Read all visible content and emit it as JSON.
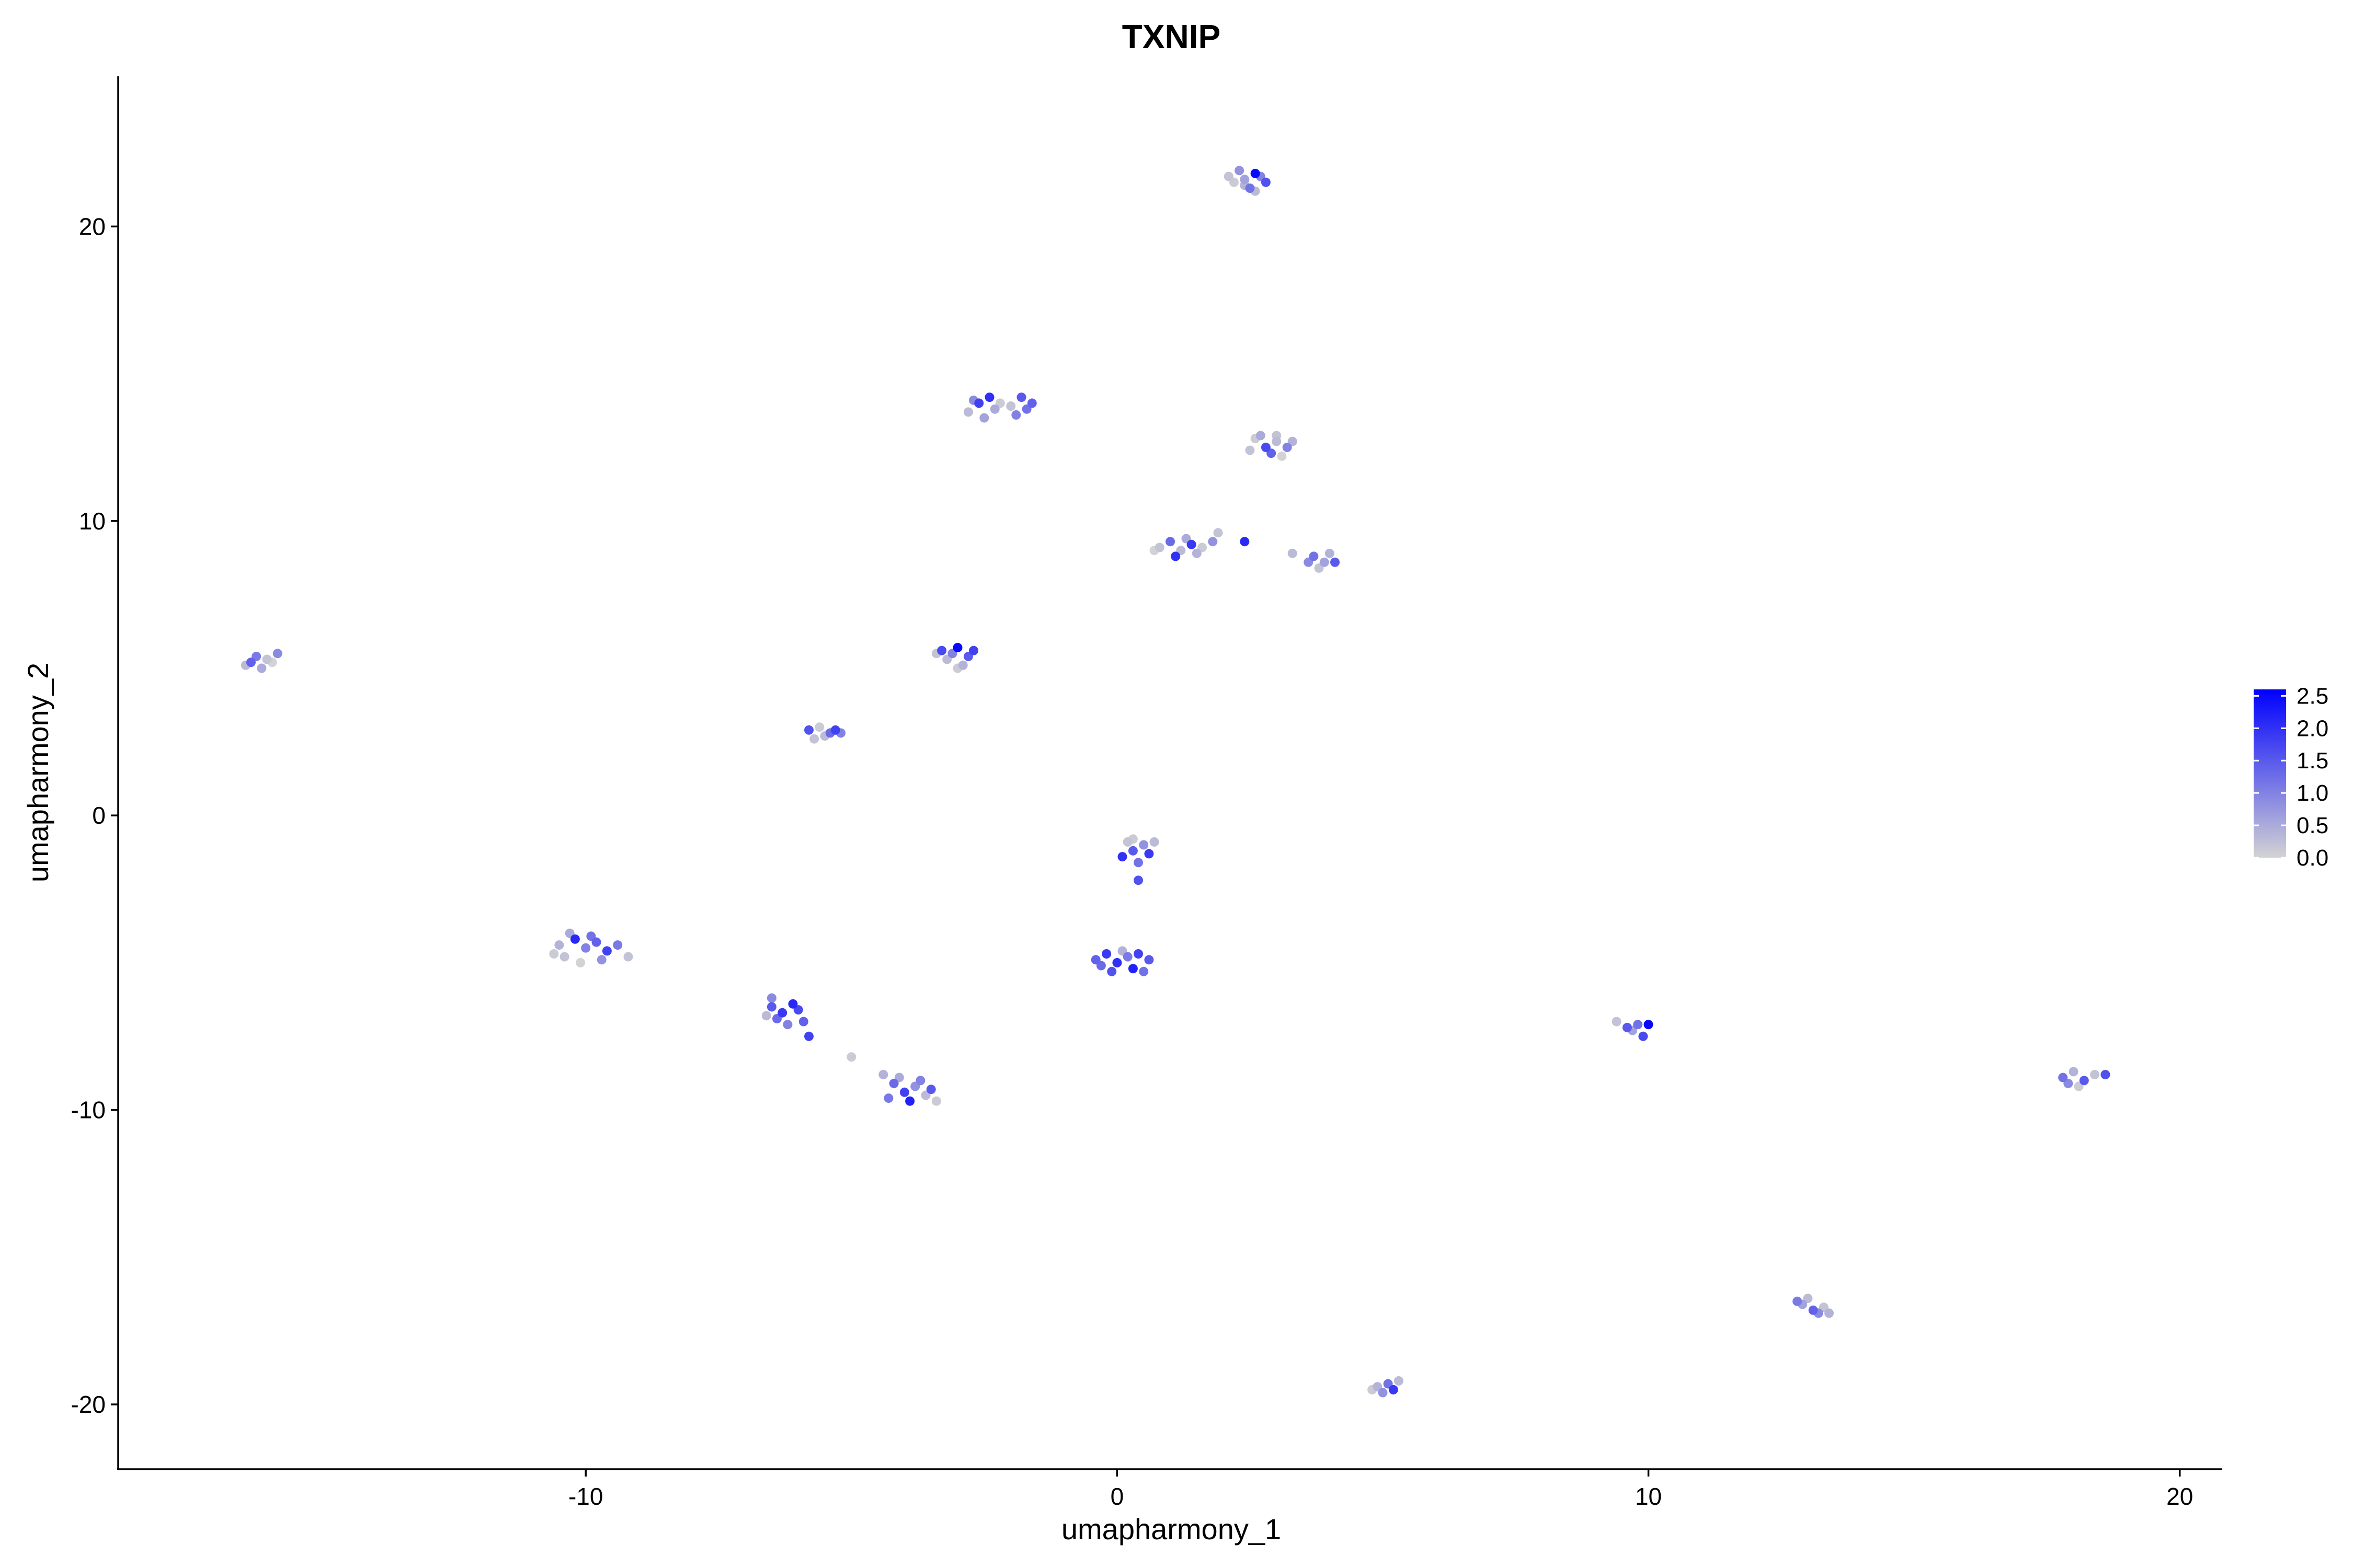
{
  "chart_data": {
    "type": "scatter",
    "title": "TXNIP",
    "xlabel": "umapharmony_1",
    "ylabel": "umapharmony_2",
    "xlim": [
      -18.8,
      20.8
    ],
    "ylim": [
      -22.2,
      25.1
    ],
    "x_ticks": [
      -10,
      0,
      10,
      20
    ],
    "y_ticks": [
      -20,
      -10,
      0,
      10,
      20
    ],
    "x_tick_labels": [
      "-10",
      "0",
      "10",
      "20"
    ],
    "y_tick_labels": [
      "-20",
      "-10",
      "0",
      "10",
      "20"
    ],
    "grid": false,
    "legend": {
      "position": "right",
      "type": "colorbar",
      "labels": [
        "2.5",
        "2.0",
        "1.5",
        "1.0",
        "0.5",
        "0.0"
      ],
      "values": [
        2.5,
        2.0,
        1.5,
        1.0,
        0.5,
        0.0
      ],
      "range": [
        0,
        2.6
      ]
    },
    "color_low": "#d3d3d3",
    "color_high": "#0000ff",
    "points": [
      {
        "x": 2.4,
        "y": 21.6,
        "v": 0.6
      },
      {
        "x": 2.6,
        "y": 21.8,
        "v": 2.5
      },
      {
        "x": 2.2,
        "y": 21.5,
        "v": 0.1
      },
      {
        "x": 2.5,
        "y": 21.3,
        "v": 1.2
      },
      {
        "x": 2.8,
        "y": 21.5,
        "v": 1.6
      },
      {
        "x": 2.3,
        "y": 21.9,
        "v": 0.8
      },
      {
        "x": 2.6,
        "y": 21.2,
        "v": 0.3
      },
      {
        "x": 2.1,
        "y": 21.7,
        "v": 0.2
      },
      {
        "x": 2.7,
        "y": 21.7,
        "v": 1.0
      },
      {
        "x": 2.4,
        "y": 21.4,
        "v": 0.4
      },
      {
        "x": -2.6,
        "y": 14.0,
        "v": 1.8
      },
      {
        "x": -2.3,
        "y": 13.8,
        "v": 0.5
      },
      {
        "x": -2.0,
        "y": 13.9,
        "v": 0.2
      },
      {
        "x": -1.8,
        "y": 14.2,
        "v": 1.5
      },
      {
        "x": -1.7,
        "y": 13.8,
        "v": 1.2
      },
      {
        "x": -2.4,
        "y": 14.2,
        "v": 2.0
      },
      {
        "x": -2.8,
        "y": 13.7,
        "v": 0.3
      },
      {
        "x": -1.9,
        "y": 13.6,
        "v": 1.0
      },
      {
        "x": -2.5,
        "y": 13.5,
        "v": 0.6
      },
      {
        "x": -2.2,
        "y": 14.0,
        "v": 0.1
      },
      {
        "x": -1.6,
        "y": 14.0,
        "v": 1.4
      },
      {
        "x": -2.7,
        "y": 14.1,
        "v": 0.9
      },
      {
        "x": 2.6,
        "y": 12.8,
        "v": 0.1
      },
      {
        "x": 2.8,
        "y": 12.5,
        "v": 1.7
      },
      {
        "x": 3.0,
        "y": 12.7,
        "v": 0.3
      },
      {
        "x": 3.2,
        "y": 12.5,
        "v": 1.0
      },
      {
        "x": 2.5,
        "y": 12.4,
        "v": 0.2
      },
      {
        "x": 3.3,
        "y": 12.7,
        "v": 0.4
      },
      {
        "x": 2.9,
        "y": 12.3,
        "v": 1.4
      },
      {
        "x": 3.1,
        "y": 12.2,
        "v": 0.0
      },
      {
        "x": 2.7,
        "y": 12.9,
        "v": 0.5
      },
      {
        "x": 3.0,
        "y": 12.9,
        "v": 0.2
      },
      {
        "x": 0.8,
        "y": 9.1,
        "v": 0.2
      },
      {
        "x": 1.0,
        "y": 9.3,
        "v": 1.3
      },
      {
        "x": 1.2,
        "y": 9.0,
        "v": 0.3
      },
      {
        "x": 1.4,
        "y": 9.2,
        "v": 1.9
      },
      {
        "x": 1.6,
        "y": 9.1,
        "v": 0.1
      },
      {
        "x": 1.8,
        "y": 9.3,
        "v": 0.8
      },
      {
        "x": 1.1,
        "y": 8.8,
        "v": 2.0
      },
      {
        "x": 0.7,
        "y": 9.0,
        "v": 0.0
      },
      {
        "x": 1.9,
        "y": 9.6,
        "v": 0.2
      },
      {
        "x": 1.3,
        "y": 9.4,
        "v": 0.5
      },
      {
        "x": 1.5,
        "y": 8.9,
        "v": 0.4
      },
      {
        "x": 2.4,
        "y": 9.3,
        "v": 2.1
      },
      {
        "x": 3.3,
        "y": 8.9,
        "v": 0.3
      },
      {
        "x": 3.7,
        "y": 8.8,
        "v": 1.2
      },
      {
        "x": 3.9,
        "y": 8.6,
        "v": 0.6
      },
      {
        "x": 4.1,
        "y": 8.6,
        "v": 1.5
      },
      {
        "x": 3.8,
        "y": 8.4,
        "v": 0.2
      },
      {
        "x": 3.6,
        "y": 8.6,
        "v": 0.9
      },
      {
        "x": 4.0,
        "y": 8.9,
        "v": 0.4
      },
      {
        "x": -16.3,
        "y": 5.2,
        "v": 1.4
      },
      {
        "x": -16.0,
        "y": 5.3,
        "v": 0.2
      },
      {
        "x": -16.1,
        "y": 5.0,
        "v": 0.5
      },
      {
        "x": -15.8,
        "y": 5.5,
        "v": 0.9
      },
      {
        "x": -16.4,
        "y": 5.1,
        "v": 0.3
      },
      {
        "x": -15.9,
        "y": 5.2,
        "v": 0.0
      },
      {
        "x": -16.2,
        "y": 5.4,
        "v": 1.1
      },
      {
        "x": -3.3,
        "y": 5.6,
        "v": 1.7
      },
      {
        "x": -3.0,
        "y": 5.7,
        "v": 2.5
      },
      {
        "x": -2.8,
        "y": 5.4,
        "v": 1.5
      },
      {
        "x": -3.2,
        "y": 5.3,
        "v": 0.3
      },
      {
        "x": -2.9,
        "y": 5.1,
        "v": 0.4
      },
      {
        "x": -3.1,
        "y": 5.5,
        "v": 1.0
      },
      {
        "x": -2.7,
        "y": 5.6,
        "v": 1.8
      },
      {
        "x": -3.4,
        "y": 5.5,
        "v": 0.2
      },
      {
        "x": -3.0,
        "y": 5.0,
        "v": 0.1
      },
      {
        "x": -5.8,
        "y": 2.9,
        "v": 1.6
      },
      {
        "x": -5.5,
        "y": 2.7,
        "v": 0.3
      },
      {
        "x": -5.3,
        "y": 2.9,
        "v": 1.8
      },
      {
        "x": -5.6,
        "y": 3.0,
        "v": 0.1
      },
      {
        "x": -5.4,
        "y": 2.8,
        "v": 1.3
      },
      {
        "x": -5.7,
        "y": 2.6,
        "v": 0.2
      },
      {
        "x": -5.2,
        "y": 2.8,
        "v": 1.0
      },
      {
        "x": 0.3,
        "y": -1.2,
        "v": 1.5
      },
      {
        "x": 0.5,
        "y": -1.0,
        "v": 0.8
      },
      {
        "x": 0.2,
        "y": -0.9,
        "v": 0.2
      },
      {
        "x": 0.6,
        "y": -1.3,
        "v": 1.9
      },
      {
        "x": 0.1,
        "y": -1.4,
        "v": 2.0
      },
      {
        "x": 0.4,
        "y": -1.6,
        "v": 1.2
      },
      {
        "x": 0.7,
        "y": -0.9,
        "v": 0.3
      },
      {
        "x": 0.3,
        "y": -0.8,
        "v": 0.1
      },
      {
        "x": 0.4,
        "y": -2.2,
        "v": 1.6
      },
      {
        "x": -0.4,
        "y": -4.9,
        "v": 1.4
      },
      {
        "x": -0.2,
        "y": -4.7,
        "v": 1.9
      },
      {
        "x": 0.0,
        "y": -5.0,
        "v": 2.0
      },
      {
        "x": 0.2,
        "y": -4.8,
        "v": 1.1
      },
      {
        "x": 0.4,
        "y": -4.7,
        "v": 1.8
      },
      {
        "x": -0.1,
        "y": -5.3,
        "v": 1.6
      },
      {
        "x": 0.3,
        "y": -5.2,
        "v": 2.2
      },
      {
        "x": 0.6,
        "y": -4.9,
        "v": 1.5
      },
      {
        "x": -0.3,
        "y": -5.1,
        "v": 1.3
      },
      {
        "x": 0.1,
        "y": -4.6,
        "v": 0.4
      },
      {
        "x": 0.5,
        "y": -5.3,
        "v": 1.2
      },
      {
        "x": -10.5,
        "y": -4.4,
        "v": 0.4
      },
      {
        "x": -10.2,
        "y": -4.2,
        "v": 2.1
      },
      {
        "x": -10.0,
        "y": -4.5,
        "v": 1.0
      },
      {
        "x": -9.8,
        "y": -4.3,
        "v": 1.4
      },
      {
        "x": -9.6,
        "y": -4.6,
        "v": 1.8
      },
      {
        "x": -10.4,
        "y": -4.8,
        "v": 0.2
      },
      {
        "x": -10.1,
        "y": -5.0,
        "v": 0.0
      },
      {
        "x": -9.9,
        "y": -4.1,
        "v": 1.2
      },
      {
        "x": -9.4,
        "y": -4.4,
        "v": 1.1
      },
      {
        "x": -9.2,
        "y": -4.8,
        "v": 0.2
      },
      {
        "x": -10.3,
        "y": -4.0,
        "v": 0.5
      },
      {
        "x": -9.7,
        "y": -4.9,
        "v": 0.8
      },
      {
        "x": -10.6,
        "y": -4.7,
        "v": 0.1
      },
      {
        "x": -6.5,
        "y": -6.5,
        "v": 1.5
      },
      {
        "x": -6.3,
        "y": -6.7,
        "v": 1.9
      },
      {
        "x": -6.1,
        "y": -6.4,
        "v": 2.1
      },
      {
        "x": -6.4,
        "y": -6.9,
        "v": 1.3
      },
      {
        "x": -6.0,
        "y": -6.6,
        "v": 1.7
      },
      {
        "x": -6.6,
        "y": -6.8,
        "v": 0.3
      },
      {
        "x": -6.2,
        "y": -7.1,
        "v": 1.0
      },
      {
        "x": -6.5,
        "y": -6.2,
        "v": 0.9
      },
      {
        "x": -5.9,
        "y": -7.0,
        "v": 1.4
      },
      {
        "x": -5.8,
        "y": -7.5,
        "v": 1.8
      },
      {
        "x": -5.0,
        "y": -8.2,
        "v": 0.1
      },
      {
        "x": -4.2,
        "y": -9.1,
        "v": 1.3
      },
      {
        "x": -4.0,
        "y": -9.4,
        "v": 1.8
      },
      {
        "x": -3.8,
        "y": -9.2,
        "v": 0.8
      },
      {
        "x": -3.6,
        "y": -9.5,
        "v": 0.3
      },
      {
        "x": -3.9,
        "y": -9.7,
        "v": 2.2
      },
      {
        "x": -4.3,
        "y": -9.6,
        "v": 1.1
      },
      {
        "x": -3.5,
        "y": -9.3,
        "v": 1.5
      },
      {
        "x": -4.1,
        "y": -8.9,
        "v": 0.5
      },
      {
        "x": -3.7,
        "y": -9.0,
        "v": 1.0
      },
      {
        "x": -3.4,
        "y": -9.7,
        "v": 0.1
      },
      {
        "x": -4.4,
        "y": -8.8,
        "v": 0.4
      },
      {
        "x": 9.4,
        "y": -7.0,
        "v": 0.2
      },
      {
        "x": 9.6,
        "y": -7.2,
        "v": 1.5
      },
      {
        "x": 9.8,
        "y": -7.1,
        "v": 1.2
      },
      {
        "x": 10.0,
        "y": -7.1,
        "v": 2.5
      },
      {
        "x": 9.7,
        "y": -7.3,
        "v": 0.6
      },
      {
        "x": 9.9,
        "y": -7.5,
        "v": 1.7
      },
      {
        "x": 17.8,
        "y": -8.9,
        "v": 1.2
      },
      {
        "x": 18.0,
        "y": -8.7,
        "v": 0.4
      },
      {
        "x": 18.2,
        "y": -9.0,
        "v": 1.5
      },
      {
        "x": 18.4,
        "y": -8.8,
        "v": 0.2
      },
      {
        "x": 17.9,
        "y": -9.1,
        "v": 0.9
      },
      {
        "x": 18.1,
        "y": -9.2,
        "v": 0.1
      },
      {
        "x": 18.6,
        "y": -8.8,
        "v": 1.6
      },
      {
        "x": 12.8,
        "y": -16.5,
        "v": 1.1
      },
      {
        "x": 13.0,
        "y": -16.4,
        "v": 0.3
      },
      {
        "x": 13.1,
        "y": -16.8,
        "v": 1.4
      },
      {
        "x": 13.3,
        "y": -16.7,
        "v": 0.2
      },
      {
        "x": 12.9,
        "y": -16.6,
        "v": 0.6
      },
      {
        "x": 13.2,
        "y": -16.9,
        "v": 0.9
      },
      {
        "x": 13.4,
        "y": -16.9,
        "v": 0.4
      },
      {
        "x": 4.9,
        "y": -19.4,
        "v": 0.4
      },
      {
        "x": 5.1,
        "y": -19.3,
        "v": 1.2
      },
      {
        "x": 5.2,
        "y": -19.5,
        "v": 1.9
      },
      {
        "x": 5.3,
        "y": -19.2,
        "v": 0.3
      },
      {
        "x": 4.8,
        "y": -19.5,
        "v": 0.1
      },
      {
        "x": 5.0,
        "y": -19.6,
        "v": 0.8
      }
    ]
  }
}
